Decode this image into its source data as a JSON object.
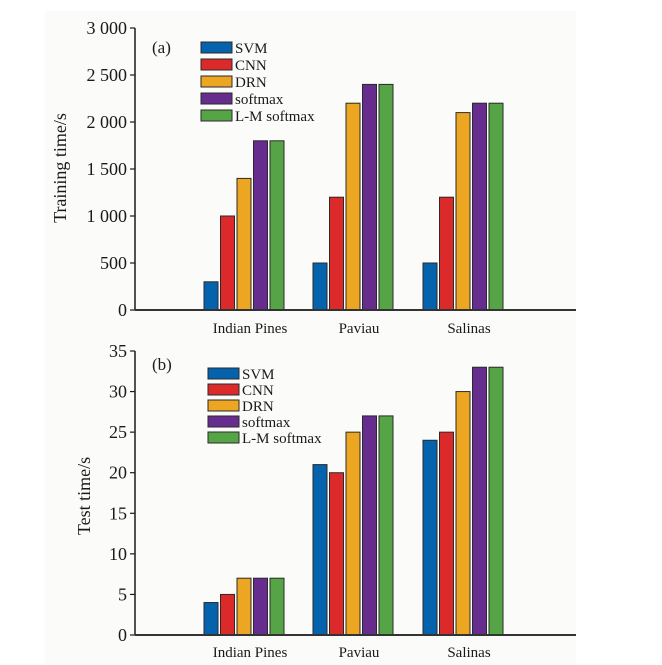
{
  "chart_data": [
    {
      "type": "bar",
      "panel_label": "(a)",
      "title": "",
      "xlabel": "",
      "ylabel": "Training time/s",
      "ylim": [
        0,
        3000
      ],
      "yticks": [
        0,
        500,
        1000,
        1500,
        2000,
        2500,
        3000
      ],
      "ytick_labels": [
        "0",
        "500",
        "1 000",
        "1 500",
        "2 000",
        "2 500",
        "3 000"
      ],
      "categories": [
        "Indian Pines",
        "Paviau",
        "Salinas"
      ],
      "legend_position": "top-left",
      "grid": false,
      "series": [
        {
          "name": "SVM",
          "color": "#0563ad",
          "values": [
            300,
            500,
            500
          ]
        },
        {
          "name": "CNN",
          "color": "#dc292a",
          "values": [
            1000,
            1200,
            1200
          ]
        },
        {
          "name": "DRN",
          "color": "#eda622",
          "values": [
            1400,
            2200,
            2100
          ]
        },
        {
          "name": "softmax",
          "color": "#662d8f",
          "values": [
            1800,
            2400,
            2200
          ]
        },
        {
          "name": "L-M softmax",
          "color": "#55a546",
          "values": [
            1800,
            2400,
            2200
          ]
        }
      ]
    },
    {
      "type": "bar",
      "panel_label": "(b)",
      "title": "",
      "xlabel": "",
      "ylabel": "Test time/s",
      "ylim": [
        0,
        35
      ],
      "yticks": [
        0,
        5,
        10,
        15,
        20,
        25,
        30,
        35
      ],
      "ytick_labels": [
        "0",
        "5",
        "10",
        "15",
        "20",
        "25",
        "30",
        "35"
      ],
      "categories": [
        "Indian Pines",
        "Paviau",
        "Salinas"
      ],
      "legend_position": "top-left",
      "grid": false,
      "series": [
        {
          "name": "SVM",
          "color": "#0563ad",
          "values": [
            4,
            21,
            24
          ]
        },
        {
          "name": "CNN",
          "color": "#dc292a",
          "values": [
            5,
            20,
            25
          ]
        },
        {
          "name": "DRN",
          "color": "#eda622",
          "values": [
            7,
            25,
            30
          ]
        },
        {
          "name": "softmax",
          "color": "#662d8f",
          "values": [
            7,
            27,
            33
          ]
        },
        {
          "name": "L-M softmax",
          "color": "#55a546",
          "values": [
            7,
            27,
            33
          ]
        }
      ]
    }
  ]
}
